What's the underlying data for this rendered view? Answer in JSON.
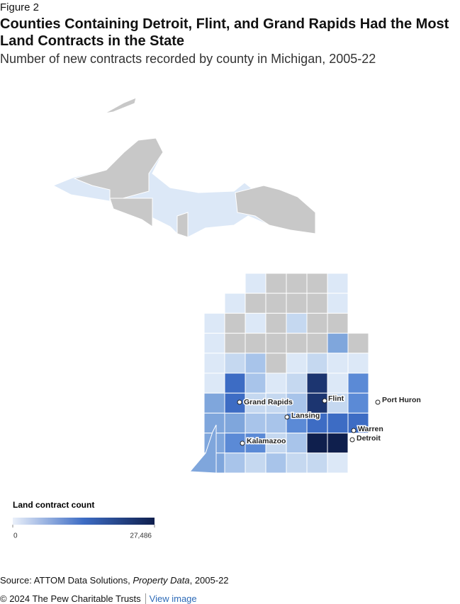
{
  "header": {
    "figure": "Figure 2",
    "title": "Counties Containing Detroit, Flint, and Grand Rapids Had the Most Land Contracts in the State",
    "subtitle": "Number of new contracts recorded by county in Michigan, 2005-22"
  },
  "cities": [
    {
      "label": "Grand Rapids"
    },
    {
      "label": "Flint"
    },
    {
      "label": "Lansing"
    },
    {
      "label": "Port Huron"
    },
    {
      "label": "Warren"
    },
    {
      "label": "Detroit"
    },
    {
      "label": "Kalamazoo"
    }
  ],
  "legend": {
    "title": "Land contract count",
    "ticks": [
      0,
      {
        "value": 27486,
        "label": "27,486"
      }
    ]
  },
  "source": {
    "prefix": "Source: ATTOM Data Solutions, ",
    "italic": "Property Data",
    "suffix": ", 2005-22"
  },
  "footer": {
    "copyright": "© 2024 The Pew Charitable Trusts",
    "link": "View image"
  }
}
